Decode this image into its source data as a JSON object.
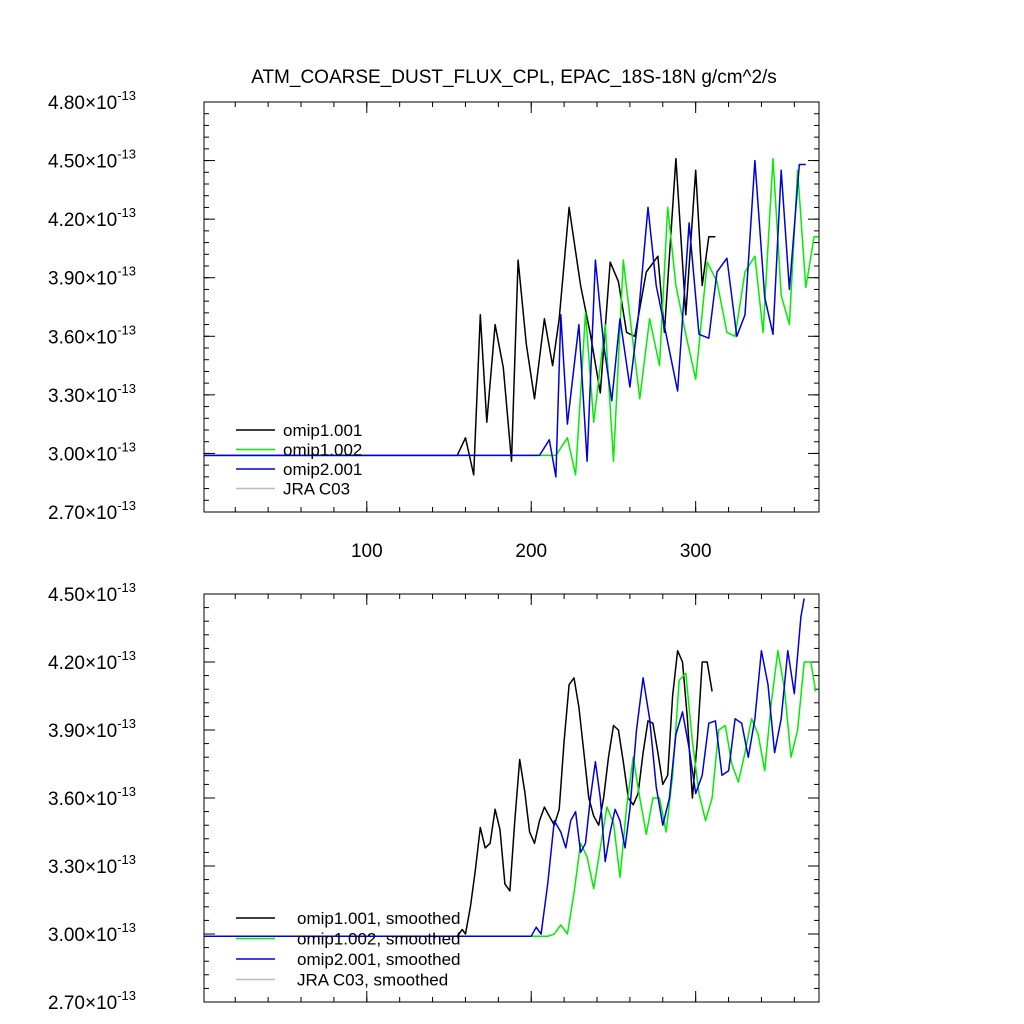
{
  "chart_data": [
    {
      "type": "line",
      "title": "ATM_COARSE_DUST_FLUX_CPL, EPAC_18S-18N  g/cm^2/s",
      "xlabel": "",
      "ylabel": "",
      "xlim": [
        1,
        375
      ],
      "ylim": [
        2.7,
        4.8
      ],
      "y_exponent": "-13",
      "x_ticks": [
        100,
        200,
        300
      ],
      "x_tick_labels": [
        "100",
        "200",
        "300"
      ],
      "y_ticks": [
        2.7,
        3.0,
        3.3,
        3.6,
        3.9,
        4.2,
        4.5,
        4.8
      ],
      "y_tick_labels": [
        "2.70",
        "3.00",
        "3.30",
        "3.60",
        "3.90",
        "4.20",
        "4.50",
        "4.80"
      ],
      "legend_position": "bottom-left",
      "series": [
        {
          "name": "omip1.001",
          "color": "#000000",
          "x": [
            1,
            155,
            160,
            165,
            169,
            173,
            178,
            183,
            188,
            192,
            197,
            202,
            208,
            213,
            217,
            223,
            230,
            236,
            242,
            248,
            253,
            258,
            263,
            270,
            277,
            281,
            288,
            294,
            300,
            304,
            308,
            312
          ],
          "y": [
            2.99,
            2.99,
            3.08,
            2.89,
            3.71,
            3.16,
            3.66,
            3.44,
            2.96,
            3.99,
            3.56,
            3.28,
            3.69,
            3.45,
            3.69,
            4.26,
            3.86,
            3.61,
            3.31,
            3.98,
            3.88,
            3.62,
            3.6,
            3.93,
            4.01,
            3.62,
            4.51,
            3.71,
            4.45,
            3.86,
            4.11,
            4.11
          ]
        },
        {
          "name": "omip1.002",
          "color": "#00ee00",
          "x": [
            1,
            215,
            222,
            227,
            233,
            238,
            245,
            250,
            256,
            262,
            266,
            272,
            278,
            283,
            288,
            294,
            300,
            307,
            313,
            319,
            324,
            330,
            336,
            341,
            347,
            352,
            357,
            362,
            367,
            372,
            375
          ],
          "y": [
            2.99,
            2.99,
            3.08,
            2.89,
            3.72,
            3.16,
            3.66,
            2.96,
            3.99,
            3.56,
            3.28,
            3.69,
            3.45,
            4.26,
            3.86,
            3.61,
            3.38,
            3.98,
            3.88,
            3.62,
            3.6,
            3.93,
            4.01,
            3.62,
            4.51,
            3.81,
            3.66,
            4.45,
            3.85,
            4.11,
            4.11
          ]
        },
        {
          "name": "omip2.001",
          "color": "#0000dd",
          "x": [
            1,
            205,
            211,
            215,
            218,
            222,
            229,
            234,
            239,
            244,
            249,
            254,
            260,
            265,
            271,
            276,
            282,
            289,
            296,
            302,
            308,
            313,
            319,
            325,
            330,
            336,
            342,
            347,
            352,
            357,
            363,
            367
          ],
          "y": [
            2.99,
            2.99,
            3.07,
            2.88,
            3.71,
            3.15,
            3.66,
            2.96,
            3.99,
            3.56,
            3.27,
            3.69,
            3.34,
            3.69,
            4.26,
            3.86,
            3.61,
            3.32,
            4.18,
            3.61,
            3.59,
            3.93,
            4.0,
            3.6,
            3.71,
            4.5,
            3.8,
            3.61,
            4.45,
            3.84,
            4.48,
            4.48
          ]
        },
        {
          "name": "JRA C03",
          "color": "#bbbbbb",
          "x": [],
          "y": []
        }
      ]
    },
    {
      "type": "line",
      "title": "",
      "xlabel": "",
      "ylabel": "",
      "xlim": [
        1,
        375
      ],
      "ylim": [
        2.7,
        4.5
      ],
      "y_exponent": "-13",
      "x_ticks": [
        100,
        200,
        300
      ],
      "x_tick_labels": [
        "",
        "",
        ""
      ],
      "y_ticks": [
        2.7,
        3.0,
        3.3,
        3.6,
        3.9,
        4.2,
        4.5
      ],
      "y_tick_labels": [
        "2.70",
        "3.00",
        "3.30",
        "3.60",
        "3.90",
        "4.20",
        "4.50"
      ],
      "legend_position": "bottom-left",
      "series": [
        {
          "name": "omip1.001, smoothed",
          "color": "#000000",
          "x": [
            1,
            155,
            158,
            160,
            163,
            166,
            169,
            172,
            175,
            178,
            181,
            184,
            187,
            190,
            193,
            196,
            199,
            202,
            205,
            208,
            211,
            214,
            217,
            220,
            223,
            226,
            229,
            232,
            235,
            238,
            241,
            244,
            247,
            250,
            253,
            256,
            259,
            262,
            265,
            268,
            271,
            274,
            277,
            280,
            283,
            286,
            289,
            292,
            295,
            298,
            301,
            304,
            307,
            310
          ],
          "y": [
            2.99,
            2.99,
            3.02,
            3.0,
            3.12,
            3.28,
            3.47,
            3.38,
            3.4,
            3.55,
            3.46,
            3.22,
            3.19,
            3.5,
            3.77,
            3.63,
            3.45,
            3.4,
            3.5,
            3.56,
            3.52,
            3.48,
            3.55,
            3.85,
            4.1,
            4.13,
            4.0,
            3.8,
            3.6,
            3.52,
            3.48,
            3.6,
            3.78,
            3.92,
            3.9,
            3.76,
            3.6,
            3.57,
            3.62,
            3.8,
            3.94,
            3.93,
            3.8,
            3.66,
            3.7,
            4.05,
            4.25,
            4.2,
            3.95,
            3.6,
            3.85,
            4.2,
            4.2,
            4.07
          ]
        },
        {
          "name": "omip1.002, smoothed",
          "color": "#00ee00",
          "x": [
            1,
            210,
            214,
            218,
            222,
            226,
            230,
            234,
            238,
            242,
            246,
            250,
            254,
            258,
            262,
            266,
            270,
            274,
            278,
            282,
            286,
            290,
            294,
            298,
            302,
            306,
            310,
            314,
            318,
            322,
            326,
            330,
            334,
            338,
            342,
            346,
            350,
            354,
            358,
            362,
            366,
            370,
            373
          ],
          "y": [
            2.99,
            2.99,
            3.0,
            3.04,
            3.0,
            3.18,
            3.4,
            3.34,
            3.2,
            3.38,
            3.56,
            3.49,
            3.25,
            3.56,
            3.78,
            3.6,
            3.44,
            3.6,
            3.6,
            3.45,
            3.7,
            4.12,
            4.15,
            3.85,
            3.62,
            3.5,
            3.6,
            3.9,
            3.92,
            3.75,
            3.67,
            3.8,
            3.95,
            3.88,
            3.72,
            4.02,
            4.25,
            4.08,
            3.78,
            3.9,
            4.2,
            4.2,
            4.07
          ]
        },
        {
          "name": "omip2.001, smoothed",
          "color": "#0000dd",
          "x": [
            1,
            200,
            203,
            206,
            210,
            214,
            218,
            221,
            224,
            227,
            230,
            233,
            236,
            239,
            242,
            245,
            248,
            251,
            254,
            257,
            260,
            264,
            268,
            272,
            276,
            280,
            284,
            288,
            292,
            296,
            300,
            304,
            308,
            312,
            316,
            320,
            324,
            328,
            332,
            336,
            340,
            344,
            348,
            352,
            356,
            360,
            364,
            366
          ],
          "y": [
            2.99,
            2.99,
            3.03,
            3.0,
            3.22,
            3.5,
            3.45,
            3.38,
            3.5,
            3.54,
            3.36,
            3.4,
            3.6,
            3.76,
            3.6,
            3.32,
            3.45,
            3.55,
            3.5,
            3.38,
            3.55,
            3.9,
            4.13,
            3.95,
            3.65,
            3.48,
            3.6,
            3.88,
            3.98,
            3.82,
            3.62,
            3.7,
            3.93,
            3.94,
            3.7,
            3.72,
            3.95,
            3.93,
            3.78,
            3.95,
            4.25,
            4.1,
            3.8,
            3.95,
            4.25,
            4.06,
            4.4,
            4.48
          ]
        },
        {
          "name": "JRA C03, smoothed",
          "color": "#bbbbbb",
          "x": [],
          "y": []
        }
      ]
    }
  ]
}
